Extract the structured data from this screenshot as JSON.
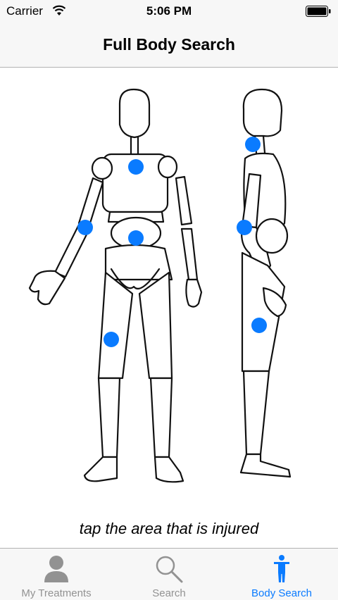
{
  "status": {
    "carrier": "Carrier",
    "time": "5:06 PM"
  },
  "nav": {
    "title": "Full Body Search"
  },
  "instruction": "tap the area that is injured",
  "hotspots": [
    "chest",
    "abdomen",
    "front-right-arm",
    "front-left-thigh",
    "side-neck",
    "side-hand",
    "side-thigh"
  ],
  "tabs": [
    {
      "label": "My Treatments",
      "icon": "person-icon",
      "active": false
    },
    {
      "label": "Search",
      "icon": "magnifier-icon",
      "active": false
    },
    {
      "label": "Body Search",
      "icon": "standing-figure-icon",
      "active": true
    }
  ],
  "colors": {
    "accent": "#0a7bff",
    "inactive": "#929292",
    "bar": "#f7f7f7"
  }
}
